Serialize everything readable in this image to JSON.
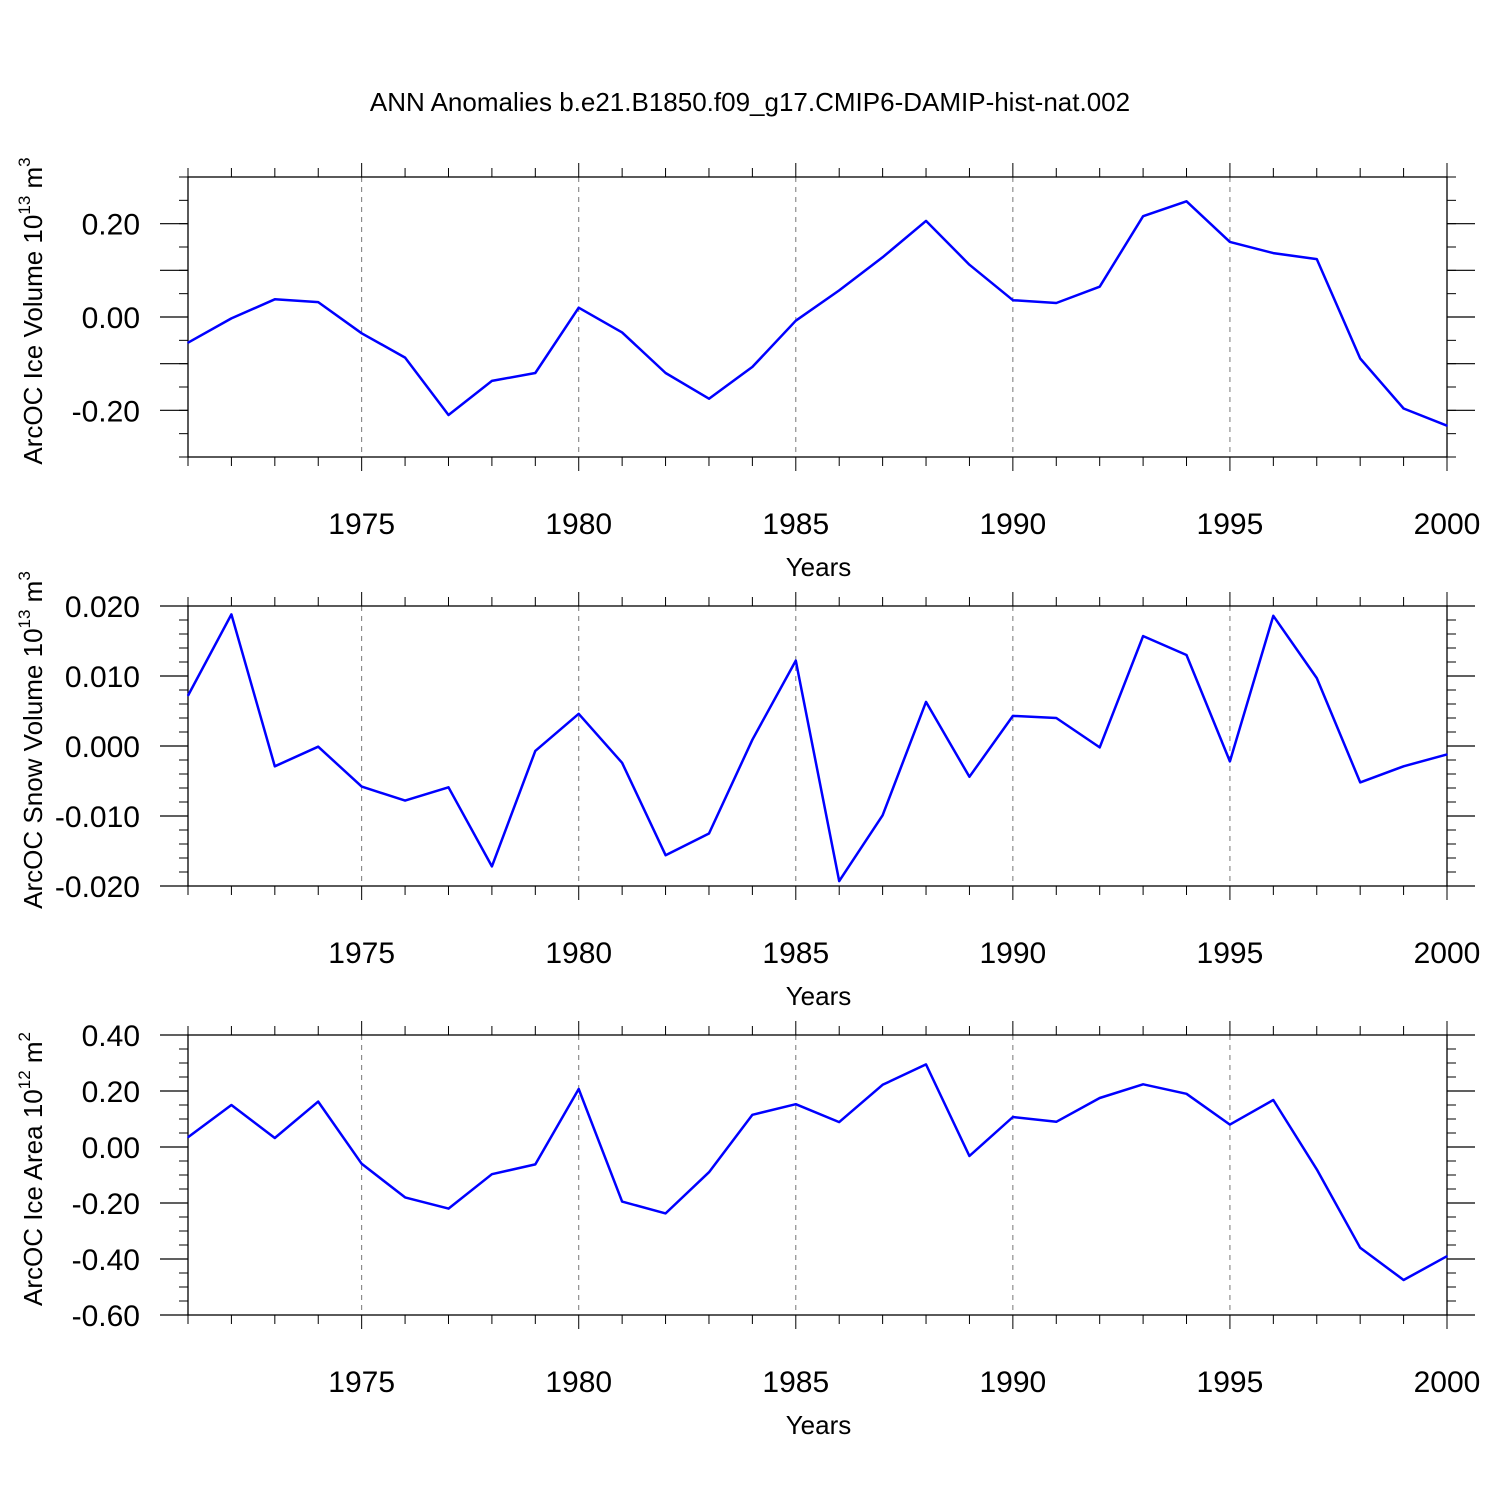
{
  "title": "ANN Anomalies b.e21.B1850.f09_g17.CMIP6-DAMIP-hist-nat.002",
  "chart_data": [
    {
      "type": "line",
      "ylabel": "ArcOC Ice Volume 10",
      "ylabel_exp": "13",
      "ylabel_unit": " m",
      "ylabel_unit_exp": "3",
      "xlabel": "Years",
      "xlim": [
        1971,
        2000
      ],
      "ylim": [
        -0.3,
        0.3
      ],
      "xticks": [
        "1975",
        "1980",
        "1985",
        "1990",
        "1995",
        "2000"
      ],
      "yticks": [
        {
          "value": 0.2,
          "label": "0.20"
        },
        {
          "value": 0.0,
          "label": "0.00"
        },
        {
          "value": -0.2,
          "label": "-0.20"
        }
      ],
      "ymajor": [
        -0.2,
        -0.1,
        0.0,
        0.1,
        0.2
      ],
      "yminor_step": 0.05,
      "line_color": "#0000ff",
      "x": [
        1971,
        1972,
        1973,
        1974,
        1975,
        1976,
        1977,
        1978,
        1979,
        1980,
        1981,
        1982,
        1983,
        1984,
        1985,
        1986,
        1987,
        1988,
        1989,
        1990,
        1991,
        1992,
        1993,
        1994,
        1995,
        1996,
        1997,
        1998,
        1999,
        2000
      ],
      "values": [
        -0.055,
        -0.003,
        0.038,
        0.032,
        -0.035,
        -0.087,
        -0.21,
        -0.137,
        -0.12,
        0.02,
        -0.033,
        -0.12,
        -0.175,
        -0.107,
        -0.008,
        0.057,
        0.128,
        0.206,
        0.112,
        0.036,
        0.03,
        0.065,
        0.216,
        0.248,
        0.161,
        0.137,
        0.124,
        -0.089,
        -0.196,
        -0.233
      ]
    },
    {
      "type": "line",
      "ylabel": "ArcOC Snow Volume 10",
      "ylabel_exp": "13",
      "ylabel_unit": " m",
      "ylabel_unit_exp": "3",
      "xlabel": "Years",
      "xlim": [
        1971,
        2000
      ],
      "ylim": [
        -0.02,
        0.02
      ],
      "xticks": [
        "1975",
        "1980",
        "1985",
        "1990",
        "1995",
        "2000"
      ],
      "yticks": [
        {
          "value": 0.02,
          "label": "0.020"
        },
        {
          "value": 0.01,
          "label": "0.010"
        },
        {
          "value": 0.0,
          "label": "0.000"
        },
        {
          "value": -0.01,
          "label": "-0.010"
        },
        {
          "value": -0.02,
          "label": "-0.020"
        }
      ],
      "ymajor": [
        -0.02,
        -0.01,
        0.0,
        0.01,
        0.02
      ],
      "yminor_step": 0.002,
      "line_color": "#0000ff",
      "x": [
        1971,
        1972,
        1973,
        1974,
        1975,
        1976,
        1977,
        1978,
        1979,
        1980,
        1981,
        1982,
        1983,
        1984,
        1985,
        1986,
        1987,
        1988,
        1989,
        1990,
        1991,
        1992,
        1993,
        1994,
        1995,
        1996,
        1997,
        1998,
        1999,
        2000
      ],
      "values": [
        0.0072,
        0.0188,
        -0.0029,
        -0.0001,
        -0.0058,
        -0.0078,
        -0.0059,
        -0.0172,
        -0.0007,
        0.0046,
        -0.0024,
        -0.0156,
        -0.0125,
        0.0009,
        0.0122,
        -0.0193,
        -0.0099,
        0.0063,
        -0.0044,
        0.0043,
        0.004,
        -0.0002,
        0.0157,
        0.013,
        -0.0022,
        0.0186,
        0.0097,
        -0.0052,
        -0.0029,
        -0.0012
      ]
    },
    {
      "type": "line",
      "ylabel": "ArcOC Ice Area 10",
      "ylabel_exp": "12",
      "ylabel_unit": " m",
      "ylabel_unit_exp": "2",
      "xlabel": "Years",
      "xlim": [
        1971,
        2000
      ],
      "ylim": [
        -0.6,
        0.4
      ],
      "xticks": [
        "1975",
        "1980",
        "1985",
        "1990",
        "1995",
        "2000"
      ],
      "yticks": [
        {
          "value": 0.4,
          "label": "0.40"
        },
        {
          "value": 0.2,
          "label": "0.20"
        },
        {
          "value": 0.0,
          "label": "0.00"
        },
        {
          "value": -0.2,
          "label": "-0.20"
        },
        {
          "value": -0.4,
          "label": "-0.40"
        },
        {
          "value": -0.6,
          "label": "-0.60"
        }
      ],
      "ymajor": [
        -0.6,
        -0.4,
        -0.2,
        0.0,
        0.2,
        0.4
      ],
      "yminor_step": 0.05,
      "line_color": "#0000ff",
      "x": [
        1971,
        1972,
        1973,
        1974,
        1975,
        1976,
        1977,
        1978,
        1979,
        1980,
        1981,
        1982,
        1983,
        1984,
        1985,
        1986,
        1987,
        1988,
        1989,
        1990,
        1991,
        1992,
        1993,
        1994,
        1995,
        1996,
        1997,
        1998,
        1999,
        2000
      ],
      "values": [
        0.035,
        0.15,
        0.032,
        0.162,
        -0.06,
        -0.18,
        -0.22,
        -0.097,
        -0.062,
        0.207,
        -0.195,
        -0.237,
        -0.09,
        0.115,
        0.153,
        0.089,
        0.222,
        0.295,
        -0.032,
        0.107,
        0.09,
        0.175,
        0.224,
        0.19,
        0.08,
        0.168,
        -0.08,
        -0.36,
        -0.475,
        -0.39
      ]
    }
  ]
}
